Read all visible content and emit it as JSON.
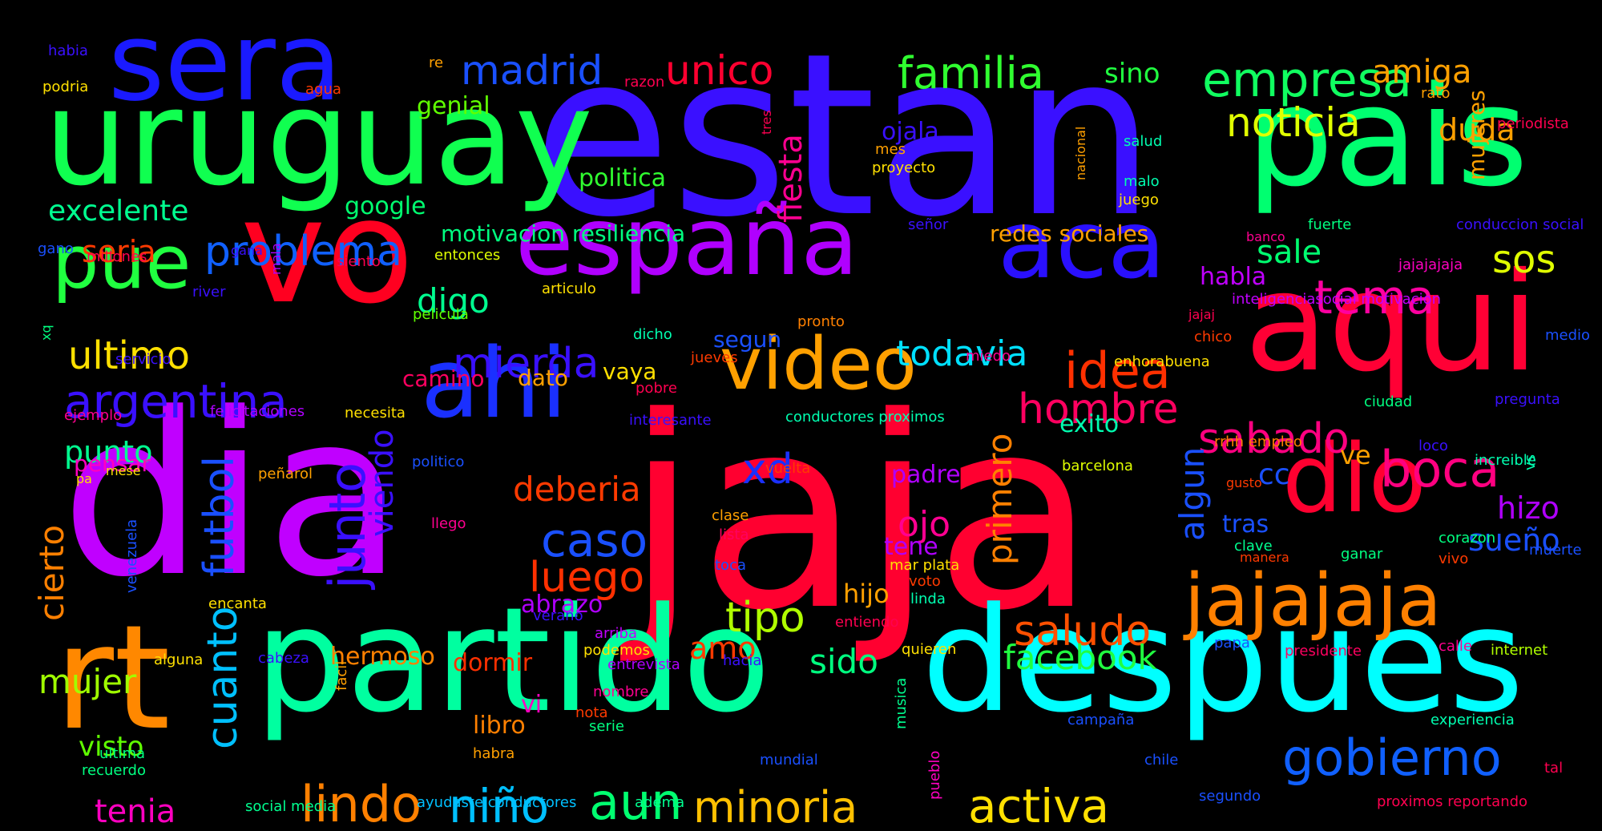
{
  "words": [
    {
      "text": "jaja",
      "color": "#ff0030"
    },
    {
      "text": "dia",
      "color": "#c000ff"
    },
    {
      "text": "estan",
      "color": "#3a10ff"
    },
    {
      "text": "pais",
      "color": "#00ff70"
    },
    {
      "text": "uruguay",
      "color": "#10ff50"
    },
    {
      "text": "sera",
      "color": "#1a1aff"
    },
    {
      "text": "vo",
      "color": "#ff0020"
    },
    {
      "text": "españa",
      "color": "#b000ff"
    },
    {
      "text": "aca",
      "color": "#2a10ff"
    },
    {
      "text": "aqui",
      "color": "#ff0035"
    },
    {
      "text": "partido",
      "color": "#00ffa0"
    },
    {
      "text": "despues",
      "color": "#00ffff"
    },
    {
      "text": "rt",
      "color": "#ff8800"
    },
    {
      "text": "ahi",
      "color": "#1a30ff"
    },
    {
      "text": "video",
      "color": "#ffa000"
    },
    {
      "text": "pue",
      "color": "#20ff40"
    },
    {
      "text": "dio",
      "color": "#ff0030"
    },
    {
      "text": "jajajaja",
      "color": "#ff8000"
    },
    {
      "text": "gobierno",
      "color": "#1060ff"
    },
    {
      "text": "empresa",
      "color": "#10ff60"
    },
    {
      "text": "familia",
      "color": "#30ff30"
    },
    {
      "text": "madrid",
      "color": "#1a50ff"
    },
    {
      "text": "unico",
      "color": "#ff0030"
    },
    {
      "text": "noticia",
      "color": "#e0ff00"
    },
    {
      "text": "amiga",
      "color": "#ffa000"
    },
    {
      "text": "sino",
      "color": "#20ff40"
    },
    {
      "text": "problema",
      "color": "#1060ff"
    },
    {
      "text": "argentina",
      "color": "#3a10ff"
    },
    {
      "text": "ultimo",
      "color": "#ffe000"
    },
    {
      "text": "seria",
      "color": "#ff3a00"
    },
    {
      "text": "excelente",
      "color": "#00ff90"
    },
    {
      "text": "politica",
      "color": "#30ff30"
    },
    {
      "text": "genial",
      "color": "#60ff00"
    },
    {
      "text": "google",
      "color": "#00ff70"
    },
    {
      "text": "motivacion resiliencia",
      "color": "#00ff80"
    },
    {
      "text": "redes sociales",
      "color": "#ffa000"
    },
    {
      "text": "mierda",
      "color": "#3a10ff"
    },
    {
      "text": "digo",
      "color": "#00ff90"
    },
    {
      "text": "tema",
      "color": "#ff00a0"
    },
    {
      "text": "sos",
      "color": "#e0ff00"
    },
    {
      "text": "sale",
      "color": "#00ff70"
    },
    {
      "text": "idea",
      "color": "#ff3000"
    },
    {
      "text": "hombre",
      "color": "#ff0060"
    },
    {
      "text": "todavia",
      "color": "#00e0ff"
    },
    {
      "text": "sabado",
      "color": "#ff0080"
    },
    {
      "text": "boca",
      "color": "#ff0080"
    },
    {
      "text": "punto",
      "color": "#00ff90"
    },
    {
      "text": "pensar",
      "color": "#ff00c0"
    },
    {
      "text": "caso",
      "color": "#1a50ff"
    },
    {
      "text": "luego",
      "color": "#ff3000"
    },
    {
      "text": "deberia",
      "color": "#ff3a00"
    },
    {
      "text": "xd",
      "color": "#1a30ff"
    },
    {
      "text": "ojo",
      "color": "#ff0090"
    },
    {
      "text": "tene",
      "color": "#b000ff"
    },
    {
      "text": "padre",
      "color": "#b000ff"
    },
    {
      "text": "tipo",
      "color": "#b0ff00"
    },
    {
      "text": "saludo",
      "color": "#ff5000"
    },
    {
      "text": "facebook",
      "color": "#20ff40"
    },
    {
      "text": "sido",
      "color": "#00ff80"
    },
    {
      "text": "amo",
      "color": "#ff3a00"
    },
    {
      "text": "hijo",
      "color": "#ffa000"
    },
    {
      "text": "abrazo",
      "color": "#b000ff"
    },
    {
      "text": "hermoso",
      "color": "#ff8000"
    },
    {
      "text": "dormir",
      "color": "#ff3000"
    },
    {
      "text": "mujer",
      "color": "#a0ff00"
    },
    {
      "text": "tenia",
      "color": "#ff00c0"
    },
    {
      "text": "visto",
      "color": "#60ff00"
    },
    {
      "text": "lindo",
      "color": "#ff8000"
    },
    {
      "text": "niño",
      "color": "#00c0ff"
    },
    {
      "text": "aun",
      "color": "#00ff70"
    },
    {
      "text": "minoria",
      "color": "#ffc000"
    },
    {
      "text": "activa",
      "color": "#ffe000"
    },
    {
      "text": "libro",
      "color": "#ff8000"
    },
    {
      "text": "vi",
      "color": "#ff00c0"
    },
    {
      "text": "sueño",
      "color": "#1a50ff"
    },
    {
      "text": "hizo",
      "color": "#b000ff"
    },
    {
      "text": "tras",
      "color": "#1a50ff"
    },
    {
      "text": "cc",
      "color": "#1a50ff"
    },
    {
      "text": "habla",
      "color": "#c000ff"
    },
    {
      "text": "duda",
      "color": "#ffa000"
    },
    {
      "text": "segun",
      "color": "#1a50ff"
    },
    {
      "text": "vaya",
      "color": "#ffe000"
    },
    {
      "text": "dato",
      "color": "#ffa000"
    },
    {
      "text": "camino",
      "color": "#ff0060"
    },
    {
      "text": "exito",
      "color": "#00ffb0"
    },
    {
      "text": "ve",
      "color": "#ffa000"
    },
    {
      "text": "ojala",
      "color": "#3a10ff"
    },
    {
      "text": "mes",
      "color": "#ffa000"
    },
    {
      "text": "proyecto",
      "color": "#ffe000"
    },
    {
      "text": "salud",
      "color": "#00ffb0"
    },
    {
      "text": "malo",
      "color": "#00ffb0"
    },
    {
      "text": "juego",
      "color": "#ffe000"
    },
    {
      "text": "rato",
      "color": "#ffa000"
    },
    {
      "text": "periodista",
      "color": "#ff0050"
    },
    {
      "text": "banco",
      "color": "#ff0090"
    },
    {
      "text": "fuerte",
      "color": "#00ff80"
    },
    {
      "text": "conduccion social",
      "color": "#3a10ff"
    },
    {
      "text": "jajajajaja",
      "color": "#ff00c0"
    },
    {
      "text": "inteligenciasocial motivacion",
      "color": "#c000ff"
    },
    {
      "text": "jajaj",
      "color": "#ff0050"
    },
    {
      "text": "chico",
      "color": "#ff3a00"
    },
    {
      "text": "medio",
      "color": "#1a50ff"
    },
    {
      "text": "ciudad",
      "color": "#00ff80"
    },
    {
      "text": "pregunta",
      "color": "#3a10ff"
    },
    {
      "text": "rrhh empleo",
      "color": "#ff8000"
    },
    {
      "text": "loco",
      "color": "#3a10ff"
    },
    {
      "text": "increible",
      "color": "#00ffb0"
    },
    {
      "text": "gusto",
      "color": "#ff3a00"
    },
    {
      "text": "clave",
      "color": "#00ff90"
    },
    {
      "text": "manera",
      "color": "#ff3a00"
    },
    {
      "text": "corazon",
      "color": "#00ff80"
    },
    {
      "text": "ganar",
      "color": "#00ff80"
    },
    {
      "text": "vivo",
      "color": "#ff3a00"
    },
    {
      "text": "muerte",
      "color": "#1a50ff"
    },
    {
      "text": "papa",
      "color": "#1a50ff"
    },
    {
      "text": "presidente",
      "color": "#ff0060"
    },
    {
      "text": "calle",
      "color": "#ff0090"
    },
    {
      "text": "internet",
      "color": "#b0ff00"
    },
    {
      "text": "experiencia",
      "color": "#00ffb0"
    },
    {
      "text": "campaña",
      "color": "#1a50ff"
    },
    {
      "text": "chile",
      "color": "#1a50ff"
    },
    {
      "text": "tal",
      "color": "#ff0050"
    },
    {
      "text": "segundo",
      "color": "#1a50ff"
    },
    {
      "text": "proximos reportando",
      "color": "#ff0050"
    },
    {
      "text": "enhorabuena",
      "color": "#ffe000"
    },
    {
      "text": "barcelona",
      "color": "#e0ff00"
    },
    {
      "text": "conductores proximos",
      "color": "#00ffb0"
    },
    {
      "text": "interesante",
      "color": "#3a10ff"
    },
    {
      "text": "jueves",
      "color": "#ff3a00"
    },
    {
      "text": "pobre",
      "color": "#ff0050"
    },
    {
      "text": "miedo",
      "color": "#ff0090"
    },
    {
      "text": "pronto",
      "color": "#ff8000"
    },
    {
      "text": "dicho",
      "color": "#00ffb0"
    },
    {
      "text": "vuelta",
      "color": "#ff3a00"
    },
    {
      "text": "clase",
      "color": "#ffa000"
    },
    {
      "text": "lista",
      "color": "#ff0060"
    },
    {
      "text": "toca",
      "color": "#1a50ff"
    },
    {
      "text": "mar plata",
      "color": "#ffe000"
    },
    {
      "text": "voto",
      "color": "#ff3a00"
    },
    {
      "text": "linda",
      "color": "#00ffb0"
    },
    {
      "text": "entiendo",
      "color": "#ff0050"
    },
    {
      "text": "quieren",
      "color": "#ffe000"
    },
    {
      "text": "arriba",
      "color": "#c000ff"
    },
    {
      "text": "podemos",
      "color": "#ffe000"
    },
    {
      "text": "entrevista",
      "color": "#b000ff"
    },
    {
      "text": "hacia",
      "color": "#3a10ff"
    },
    {
      "text": "nombre",
      "color": "#ff0090"
    },
    {
      "text": "nota",
      "color": "#ff3a00"
    },
    {
      "text": "serie",
      "color": "#00ff80"
    },
    {
      "text": "habra",
      "color": "#ffa000"
    },
    {
      "text": "mundial",
      "color": "#1a50ff"
    },
    {
      "text": "adema",
      "color": "#00ff90"
    },
    {
      "text": "ayudaste conductores",
      "color": "#00c0ff"
    },
    {
      "text": "verano",
      "color": "#3a10ff"
    },
    {
      "text": "habia",
      "color": "#3a10ff"
    },
    {
      "text": "podria",
      "color": "#ffe000"
    },
    {
      "text": "re",
      "color": "#ffa000"
    },
    {
      "text": "agua",
      "color": "#ff3a00"
    },
    {
      "text": "razon",
      "color": "#ff0050"
    },
    {
      "text": "gano",
      "color": "#1a50ff"
    },
    {
      "text": "millones",
      "color": "#ff0050"
    },
    {
      "text": "gana",
      "color": "#3a10ff"
    },
    {
      "text": "siento",
      "color": "#ff0050"
    },
    {
      "text": "entonces",
      "color": "#e0ff00"
    },
    {
      "text": "articulo",
      "color": "#ffe000"
    },
    {
      "text": "pelicula",
      "color": "#60ff00"
    },
    {
      "text": "river",
      "color": "#3a10ff"
    },
    {
      "text": "servicio",
      "color": "#3a10ff"
    },
    {
      "text": "ejemplo",
      "color": "#ff0090"
    },
    {
      "text": "felicitaciones",
      "color": "#b000ff"
    },
    {
      "text": "necesita",
      "color": "#ffe000"
    },
    {
      "text": "politico",
      "color": "#1a50ff"
    },
    {
      "text": "llego",
      "color": "#ff0090"
    },
    {
      "text": "peñarol",
      "color": "#ffa000"
    },
    {
      "text": "mese",
      "color": "#ffe000"
    },
    {
      "text": "pa",
      "color": "#ffe000"
    },
    {
      "text": "encanta",
      "color": "#ffe000"
    },
    {
      "text": "alguna",
      "color": "#ffe000"
    },
    {
      "text": "cabeza",
      "color": "#3a10ff"
    },
    {
      "text": "ultima",
      "color": "#00ff80"
    },
    {
      "text": "recuerdo",
      "color": "#00ff80"
    },
    {
      "text": "social media",
      "color": "#00ff90"
    },
    {
      "text": "señor",
      "color": "#3a10ff"
    },
    {
      "text": "fiesta",
      "color": "#ff0090"
    },
    {
      "text": "mujeres",
      "color": "#ffa000"
    },
    {
      "text": "algun",
      "color": "#1a50ff"
    },
    {
      "text": "primero",
      "color": "#ff8000"
    },
    {
      "text": "junto",
      "color": "#3a10ff"
    },
    {
      "text": "viendo",
      "color": "#3a10ff"
    },
    {
      "text": "futbol",
      "color": "#1a50ff"
    },
    {
      "text": "cierto",
      "color": "#ff8000"
    },
    {
      "text": "cuanto",
      "color": "#00c0ff"
    },
    {
      "text": "venezuela",
      "color": "#1a50ff"
    },
    {
      "text": "tres",
      "color": "#ff0050"
    },
    {
      "text": "nacional",
      "color": "#ffa000"
    },
    {
      "text": "mala",
      "color": "#b000ff"
    },
    {
      "text": "xq",
      "color": "#00ff80"
    },
    {
      "text": "facil",
      "color": "#ffa000"
    },
    {
      "text": "musica",
      "color": "#00ff90"
    },
    {
      "text": "pueblo",
      "color": "#ff00c0"
    },
    {
      "text": "vs",
      "color": "#00ffb0"
    }
  ]
}
